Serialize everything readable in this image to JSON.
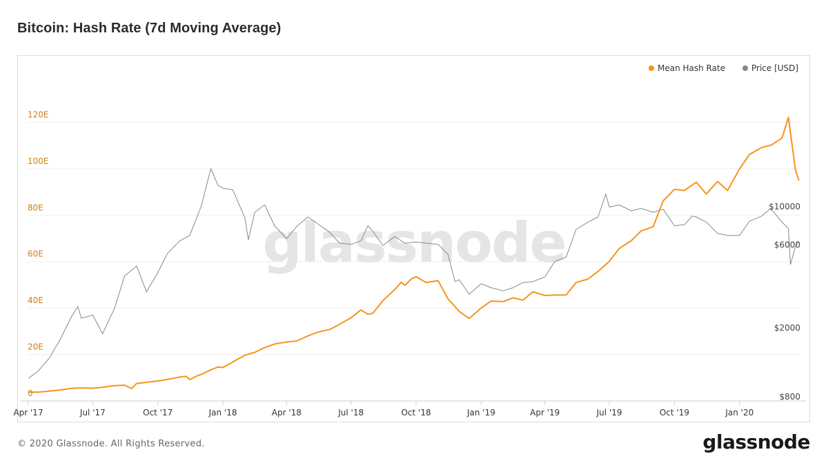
{
  "title": "Bitcoin: Hash Rate (7d Moving Average)",
  "footer": {
    "copyright": "© 2020 Glassnode. All Rights Reserved.",
    "logo": "glassnode"
  },
  "watermark": "glassnode",
  "colors": {
    "hash": "#f7931a",
    "price": "#888888",
    "grid": "#eeeeee",
    "axis_left": "#c8801a",
    "axis_right": "#444444"
  },
  "chart_data": {
    "type": "line",
    "title": "Bitcoin: Hash Rate (7d Moving Average)",
    "legend": {
      "placement": "top-right",
      "entries": [
        "Mean Hash Rate",
        "Price [USD]"
      ]
    },
    "x_ticks": [
      "Apr '17",
      "Jul '17",
      "Oct '17",
      "Jan '18",
      "Apr '18",
      "Jul '18",
      "Oct '18",
      "Jan '19",
      "Apr '19",
      "Jul '19",
      "Oct '19",
      "Jan '20"
    ],
    "x_range": [
      "2017-03-31",
      "2020-03-27"
    ],
    "y_left": {
      "label": "",
      "ticks": [
        "0",
        "20E",
        "40E",
        "60E",
        "80E",
        "100E",
        "120E"
      ],
      "tick_values": [
        0,
        20,
        40,
        60,
        80,
        100,
        120
      ],
      "range": [
        0,
        140
      ]
    },
    "y_right": {
      "label": "",
      "scale": "log",
      "ticks": [
        "$800",
        "$2000",
        "$6000",
        "$10000"
      ],
      "tick_values": [
        800,
        2000,
        6000,
        10000
      ],
      "range": [
        800,
        60000
      ]
    },
    "grid": true,
    "series": [
      {
        "name": "Mean Hash Rate",
        "axis": "left",
        "unit": "EH/s",
        "points": [
          [
            "2017-04-01",
            3.8
          ],
          [
            "2017-04-15",
            3.8
          ],
          [
            "2017-05-01",
            4.2
          ],
          [
            "2017-05-15",
            4.7
          ],
          [
            "2017-06-01",
            5.4
          ],
          [
            "2017-06-15",
            5.6
          ],
          [
            "2017-07-01",
            5.5
          ],
          [
            "2017-07-15",
            5.9
          ],
          [
            "2017-08-01",
            6.6
          ],
          [
            "2017-08-15",
            6.8
          ],
          [
            "2017-08-25",
            5.3
          ],
          [
            "2017-09-01",
            7.5
          ],
          [
            "2017-09-15",
            8.0
          ],
          [
            "2017-10-01",
            8.6
          ],
          [
            "2017-10-15",
            9.3
          ],
          [
            "2017-11-01",
            10.3
          ],
          [
            "2017-11-10",
            10.6
          ],
          [
            "2017-11-15",
            9.2
          ],
          [
            "2017-11-25",
            10.7
          ],
          [
            "2017-12-01",
            11.4
          ],
          [
            "2017-12-15",
            13.4
          ],
          [
            "2017-12-25",
            14.6
          ],
          [
            "2018-01-01",
            14.4
          ],
          [
            "2018-01-15",
            16.8
          ],
          [
            "2018-02-01",
            19.7
          ],
          [
            "2018-02-15",
            20.9
          ],
          [
            "2018-03-01",
            23.0
          ],
          [
            "2018-03-15",
            24.5
          ],
          [
            "2018-04-01",
            25.4
          ],
          [
            "2018-04-15",
            25.8
          ],
          [
            "2018-05-01",
            28.0
          ],
          [
            "2018-05-15",
            29.6
          ],
          [
            "2018-06-01",
            30.8
          ],
          [
            "2018-06-15",
            33.0
          ],
          [
            "2018-07-01",
            35.8
          ],
          [
            "2018-07-15",
            39.2
          ],
          [
            "2018-07-25",
            37.3
          ],
          [
            "2018-08-01",
            37.8
          ],
          [
            "2018-08-15",
            43.2
          ],
          [
            "2018-09-01",
            48.0
          ],
          [
            "2018-09-10",
            51.1
          ],
          [
            "2018-09-15",
            49.8
          ],
          [
            "2018-09-25",
            52.7
          ],
          [
            "2018-10-01",
            53.5
          ],
          [
            "2018-10-15",
            51.0
          ],
          [
            "2018-11-01",
            51.8
          ],
          [
            "2018-11-15",
            44.0
          ],
          [
            "2018-12-01",
            38.5
          ],
          [
            "2018-12-15",
            35.5
          ],
          [
            "2019-01-01",
            40.0
          ],
          [
            "2019-01-15",
            43.0
          ],
          [
            "2019-02-01",
            42.8
          ],
          [
            "2019-02-15",
            44.4
          ],
          [
            "2019-03-01",
            43.4
          ],
          [
            "2019-03-15",
            47.0
          ],
          [
            "2019-04-01",
            45.4
          ],
          [
            "2019-04-15",
            45.6
          ],
          [
            "2019-05-01",
            45.6
          ],
          [
            "2019-05-15",
            51.0
          ],
          [
            "2019-06-01",
            52.5
          ],
          [
            "2019-06-15",
            55.8
          ],
          [
            "2019-07-01",
            60.1
          ],
          [
            "2019-07-15",
            65.6
          ],
          [
            "2019-08-01",
            69.0
          ],
          [
            "2019-08-15",
            73.2
          ],
          [
            "2019-09-01",
            75.0
          ],
          [
            "2019-09-15",
            86.1
          ],
          [
            "2019-10-01",
            91.1
          ],
          [
            "2019-10-15",
            90.6
          ],
          [
            "2019-11-01",
            94.2
          ],
          [
            "2019-11-15",
            89.1
          ],
          [
            "2019-12-01",
            94.5
          ],
          [
            "2019-12-15",
            90.6
          ],
          [
            "2020-01-01",
            99.9
          ],
          [
            "2020-01-15",
            106.1
          ],
          [
            "2020-02-01",
            109.1
          ],
          [
            "2020-02-15",
            110.2
          ],
          [
            "2020-03-01",
            113.2
          ],
          [
            "2020-03-10",
            122.1
          ],
          [
            "2020-03-20",
            99.5
          ],
          [
            "2020-03-25",
            94.9
          ]
        ]
      },
      {
        "name": "Price [USD]",
        "axis": "right",
        "unit": "USD",
        "points": [
          [
            "2017-04-01",
            1080
          ],
          [
            "2017-04-15",
            1190
          ],
          [
            "2017-05-01",
            1420
          ],
          [
            "2017-05-15",
            1780
          ],
          [
            "2017-06-01",
            2450
          ],
          [
            "2017-06-10",
            2800
          ],
          [
            "2017-06-15",
            2400
          ],
          [
            "2017-07-01",
            2500
          ],
          [
            "2017-07-15",
            1950
          ],
          [
            "2017-08-01",
            2750
          ],
          [
            "2017-08-15",
            4200
          ],
          [
            "2017-09-01",
            4800
          ],
          [
            "2017-09-15",
            3400
          ],
          [
            "2017-10-01",
            4400
          ],
          [
            "2017-10-15",
            5700
          ],
          [
            "2017-11-01",
            6700
          ],
          [
            "2017-11-15",
            7200
          ],
          [
            "2017-12-01",
            10500
          ],
          [
            "2017-12-15",
            17500
          ],
          [
            "2017-12-25",
            14000
          ],
          [
            "2018-01-01",
            13500
          ],
          [
            "2018-01-15",
            13200
          ],
          [
            "2018-02-01",
            9100
          ],
          [
            "2018-02-06",
            6800
          ],
          [
            "2018-02-15",
            9800
          ],
          [
            "2018-03-01",
            10800
          ],
          [
            "2018-03-15",
            8200
          ],
          [
            "2018-04-01",
            6900
          ],
          [
            "2018-04-15",
            8100
          ],
          [
            "2018-05-01",
            9200
          ],
          [
            "2018-05-15",
            8400
          ],
          [
            "2018-06-01",
            7500
          ],
          [
            "2018-06-15",
            6500
          ],
          [
            "2018-07-01",
            6400
          ],
          [
            "2018-07-15",
            6700
          ],
          [
            "2018-07-25",
            8200
          ],
          [
            "2018-08-01",
            7600
          ],
          [
            "2018-08-15",
            6300
          ],
          [
            "2018-09-01",
            7100
          ],
          [
            "2018-09-15",
            6500
          ],
          [
            "2018-10-01",
            6600
          ],
          [
            "2018-10-15",
            6500
          ],
          [
            "2018-11-01",
            6400
          ],
          [
            "2018-11-15",
            5600
          ],
          [
            "2018-11-25",
            3900
          ],
          [
            "2018-12-01",
            4000
          ],
          [
            "2018-12-15",
            3300
          ],
          [
            "2019-01-01",
            3800
          ],
          [
            "2019-01-15",
            3600
          ],
          [
            "2019-02-01",
            3450
          ],
          [
            "2019-02-15",
            3600
          ],
          [
            "2019-03-01",
            3850
          ],
          [
            "2019-03-15",
            3900
          ],
          [
            "2019-04-01",
            4150
          ],
          [
            "2019-04-15",
            5100
          ],
          [
            "2019-05-01",
            5400
          ],
          [
            "2019-05-15",
            7800
          ],
          [
            "2019-06-01",
            8600
          ],
          [
            "2019-06-15",
            9200
          ],
          [
            "2019-06-26",
            12500
          ],
          [
            "2019-07-01",
            10500
          ],
          [
            "2019-07-15",
            10800
          ],
          [
            "2019-08-01",
            10000
          ],
          [
            "2019-08-15",
            10300
          ],
          [
            "2019-09-01",
            9800
          ],
          [
            "2019-09-15",
            10200
          ],
          [
            "2019-10-01",
            8200
          ],
          [
            "2019-10-15",
            8300
          ],
          [
            "2019-10-26",
            9300
          ],
          [
            "2019-11-01",
            9200
          ],
          [
            "2019-11-15",
            8600
          ],
          [
            "2019-12-01",
            7400
          ],
          [
            "2019-12-15",
            7200
          ],
          [
            "2020-01-01",
            7200
          ],
          [
            "2020-01-15",
            8700
          ],
          [
            "2020-02-01",
            9300
          ],
          [
            "2020-02-14",
            10300
          ],
          [
            "2020-03-01",
            8600
          ],
          [
            "2020-03-10",
            7900
          ],
          [
            "2020-03-13",
            4900
          ],
          [
            "2020-03-20",
            6200
          ],
          [
            "2020-03-25",
            6700
          ]
        ]
      }
    ]
  }
}
